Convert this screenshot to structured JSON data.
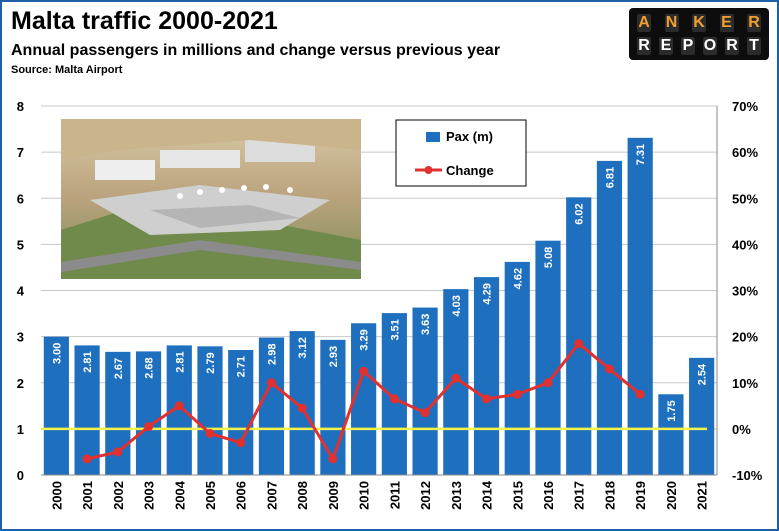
{
  "header": {
    "title": "Malta traffic 2000-2021",
    "subtitle": "Annual passengers in millions and change versus previous year",
    "source": "Source: Malta Airport"
  },
  "logo": {
    "top_letters": [
      "A",
      "N",
      "K",
      "E",
      "R"
    ],
    "bottom_letters": [
      "R",
      "E",
      "P",
      "O",
      "R",
      "T"
    ],
    "text": "ANKER REPORT"
  },
  "photo": {
    "description_icon": "airport-aerial-photo"
  },
  "colors": {
    "bar": "#1f6fbf",
    "line": "#e0302f",
    "reference_line": "#f3f24a",
    "logo_accent": "#f0a030"
  },
  "chart_data": {
    "type": "bar",
    "categories": [
      "2000",
      "2001",
      "2002",
      "2003",
      "2004",
      "2005",
      "2006",
      "2007",
      "2008",
      "2009",
      "2010",
      "2011",
      "2012",
      "2013",
      "2014",
      "2015",
      "2016",
      "2017",
      "2018",
      "2019",
      "2020",
      "2021"
    ],
    "series": [
      {
        "name": "Pax (m)",
        "type": "bar",
        "axis": "left",
        "values": [
          3.0,
          2.81,
          2.67,
          2.68,
          2.81,
          2.79,
          2.71,
          2.98,
          3.12,
          2.93,
          3.29,
          3.51,
          3.63,
          4.03,
          4.29,
          4.62,
          5.08,
          6.02,
          6.81,
          7.31,
          1.75,
          2.54
        ],
        "labels": [
          "3.00",
          "2.81",
          "2.67",
          "2.68",
          "2.81",
          "2.79",
          "2.71",
          "2.98",
          "3.12",
          "2.93",
          "3.29",
          "3.51",
          "3.63",
          "4.03",
          "4.29",
          "4.62",
          "5.08",
          "6.02",
          "6.81",
          "7.31",
          "1.75",
          "2.54"
        ]
      },
      {
        "name": "Change",
        "type": "line",
        "axis": "right",
        "start_index": 1,
        "end_index": 19,
        "values": [
          null,
          -6.5,
          -5.0,
          0.5,
          5.0,
          -1.0,
          -3.0,
          10.0,
          4.5,
          -6.5,
          12.5,
          6.5,
          3.5,
          11.0,
          6.5,
          7.5,
          10.0,
          18.5,
          13.0,
          7.5,
          null,
          null
        ]
      }
    ],
    "y_left": {
      "min": 0,
      "max": 8,
      "ticks": [
        "0",
        "1",
        "2",
        "3",
        "4",
        "5",
        "6",
        "7",
        "8"
      ]
    },
    "y_right": {
      "min": -10,
      "max": 70,
      "ticks": [
        "-10%",
        "0%",
        "10%",
        "20%",
        "30%",
        "40%",
        "50%",
        "60%",
        "70%"
      ]
    },
    "reference_line": {
      "axis": "right",
      "value": 0
    },
    "legend": {
      "placement": "top-center",
      "entries": [
        "Pax (m)",
        "Change"
      ]
    }
  }
}
